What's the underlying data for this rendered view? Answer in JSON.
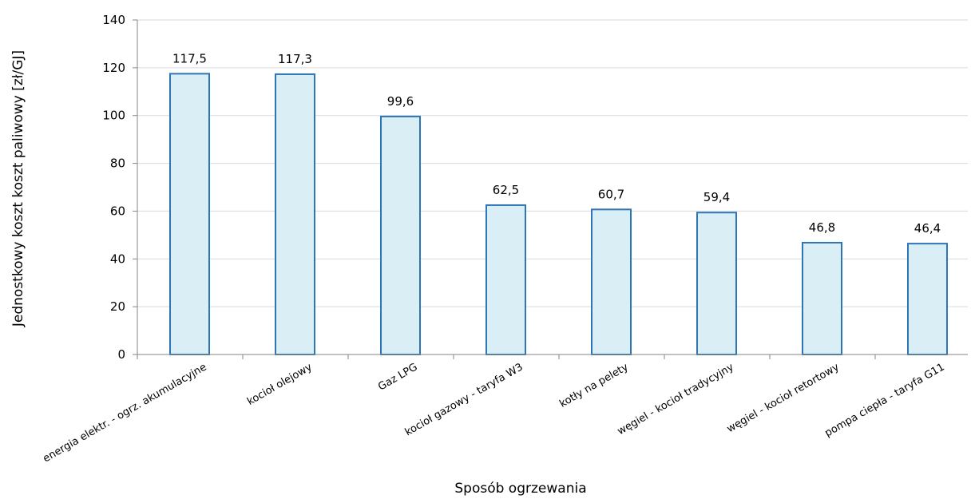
{
  "chart_data": {
    "type": "bar",
    "title": "",
    "xlabel": "Sposób ogrzewania",
    "ylabel": "Jednostkowy koszt koszt paliwowy [zł/GJ]",
    "categories": [
      "energia elektr. - ogrz. akumulacyjne",
      "kocioł olejowy",
      "Gaz LPG",
      "kocioł gazowy - taryfa W3",
      "kotły na pelety",
      "węgiel - kocioł tradycyjny",
      "węgiel - kocioł retortowy",
      "pompa ciepła - taryfa G11"
    ],
    "values": [
      117.5,
      117.3,
      99.6,
      62.5,
      60.7,
      59.4,
      46.8,
      46.4
    ],
    "data_labels": [
      "117,5",
      "117,3",
      "99,6",
      "62,5",
      "60,7",
      "59,4",
      "46,8",
      "46,4"
    ],
    "ylim": [
      0,
      140
    ],
    "yticks": [
      0,
      20,
      40,
      60,
      80,
      100,
      120,
      140
    ],
    "grid": true,
    "legend": "none",
    "colors": {
      "bar_fill": "#daeef5",
      "bar_stroke": "#2e75b6",
      "grid": "#d9d9d9",
      "axis": "#868686"
    }
  }
}
